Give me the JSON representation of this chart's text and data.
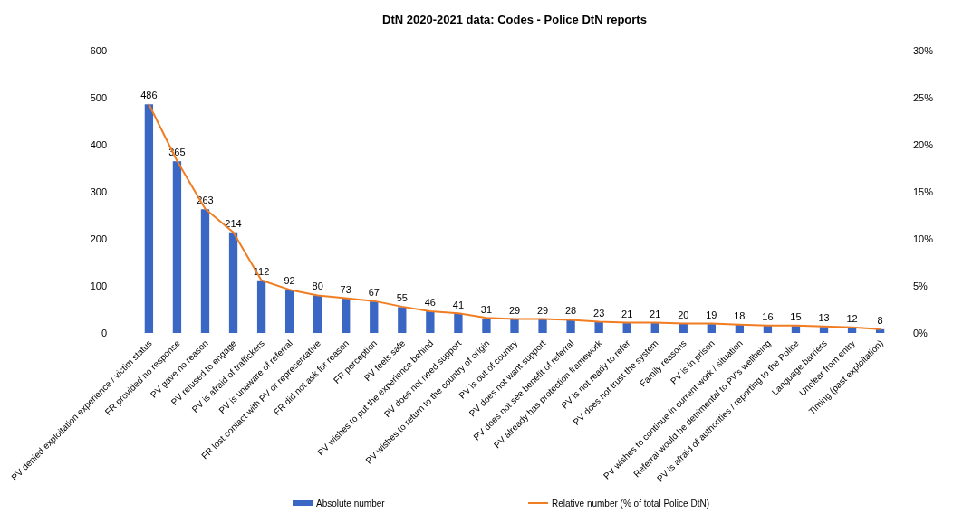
{
  "chart_data": {
    "type": "bar",
    "title": "DtN 2020-2021 data: Codes - Police DtN reports",
    "categories": [
      "PV denied exploitation experience / victim status",
      "FR provided no response",
      "PV gave no reason",
      "PV refused to engage",
      "PV is afraid of traffickers",
      "PV is unaware of referral",
      "FR lost contact with PV or representative",
      "FR did not ask for reason",
      "FR perception",
      "PV feels safe",
      "PV wishes to put the experience behind",
      "PV does not need support",
      "PV wishes to return to the country of origin",
      "PV is out of country",
      "PV does not want support",
      "PV does not see benefit of referral",
      "PV already has protection framework",
      "PV is not ready to refer",
      "PV does not trust the system",
      "Family reasons",
      "PV is in prison",
      "PV wishes to continue in current work / situation",
      "Referral would be detrimental to PV's wellbeing",
      "PV is afraid of authorities / reporting to the Police",
      "Language barriers",
      "Unclear from entry",
      "Timing (past exploitation)"
    ],
    "series": [
      {
        "name": "Absolute number",
        "color": "#3a66c4",
        "data_labels": true,
        "values": [
          486,
          365,
          263,
          214,
          112,
          92,
          80,
          73,
          67,
          55,
          46,
          41,
          31,
          29,
          29,
          28,
          23,
          21,
          21,
          20,
          19,
          18,
          16,
          15,
          13,
          12,
          8
        ]
      },
      {
        "name": "Relative number (% of total Police DtN)",
        "type": "line",
        "axis": "y2",
        "color": "#f07d22",
        "values": [
          24.3,
          18.3,
          13.2,
          10.7,
          5.6,
          4.6,
          4.0,
          3.7,
          3.4,
          2.8,
          2.3,
          2.1,
          1.6,
          1.5,
          1.5,
          1.4,
          1.2,
          1.1,
          1.1,
          1.0,
          1.0,
          0.9,
          0.8,
          0.8,
          0.7,
          0.6,
          0.4
        ]
      }
    ],
    "ylim": [
      0,
      600
    ],
    "yticks": [
      0,
      100,
      200,
      300,
      400,
      500,
      600
    ],
    "y2lim": [
      0,
      30
    ],
    "y2ticks": [
      {
        "value": 0,
        "label": "0%"
      },
      {
        "value": 5,
        "label": "5%"
      },
      {
        "value": 10,
        "label": "10%"
      },
      {
        "value": 15,
        "label": "15%"
      },
      {
        "value": 20,
        "label": "20%"
      },
      {
        "value": 25,
        "label": "25%"
      },
      {
        "value": 30,
        "label": "30%"
      }
    ],
    "legend": "bottom",
    "marker": "none",
    "line_style": "solid"
  }
}
